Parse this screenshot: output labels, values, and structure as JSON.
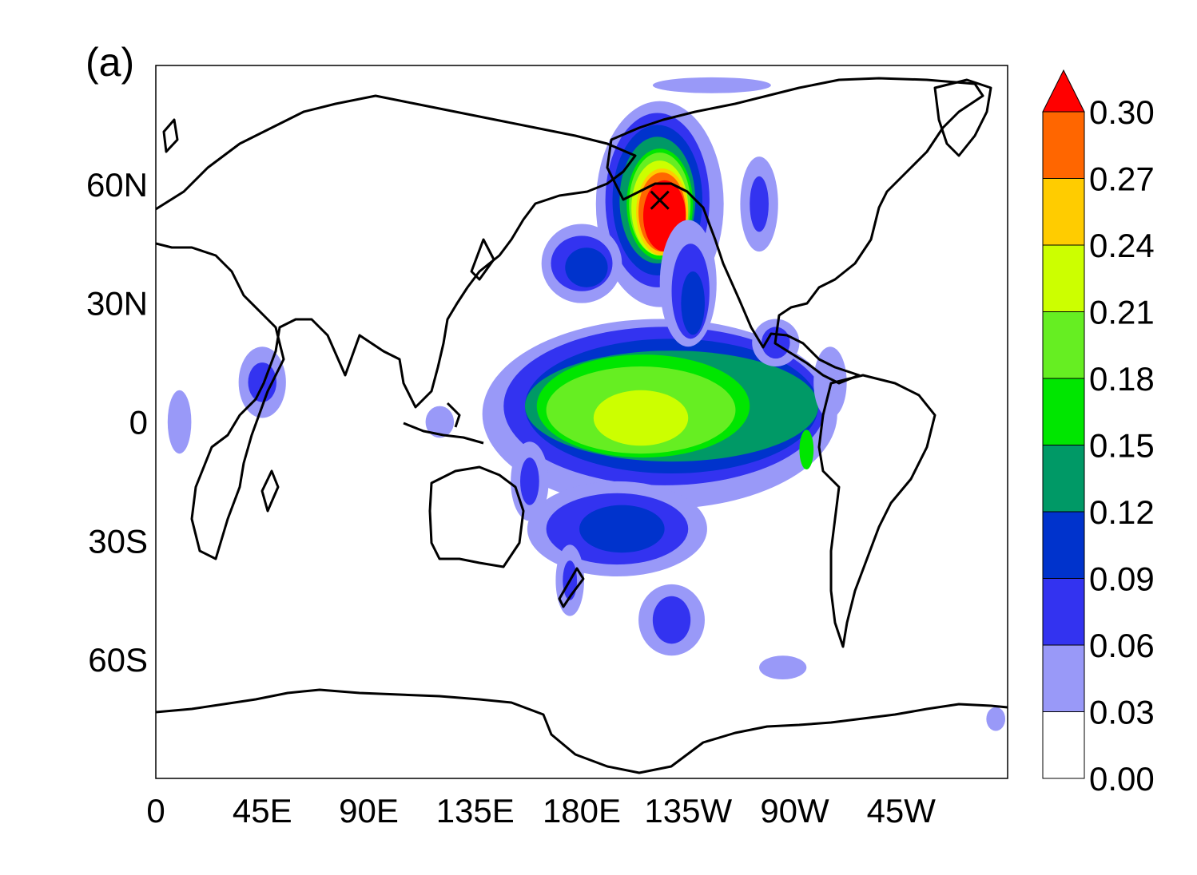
{
  "panel_label": "(a)",
  "chart_data": {
    "type": "heatmap",
    "projection": "equirectangular",
    "x_ticks": [
      "0",
      "45E",
      "90E",
      "135E",
      "180E",
      "135W",
      "90W",
      "45W"
    ],
    "x_tick_lons": [
      0,
      45,
      90,
      135,
      180,
      225,
      270,
      315
    ],
    "y_ticks": [
      "60N",
      "30N",
      "0",
      "30S",
      "60S"
    ],
    "y_tick_lats": [
      60,
      30,
      0,
      -30,
      -60
    ],
    "xlim": [
      0,
      360
    ],
    "ylim": [
      -90,
      90
    ],
    "marker": {
      "symbol": "x",
      "lon": 213,
      "lat": 56
    },
    "colorbar": {
      "levels": [
        "0.00",
        "0.03",
        "0.06",
        "0.09",
        "0.12",
        "0.15",
        "0.18",
        "0.21",
        "0.24",
        "0.27",
        "0.30"
      ],
      "colors": [
        "#ffffff",
        "#9999f8",
        "#3333f0",
        "#0033cc",
        "#009966",
        "#00e600",
        "#66ee22",
        "#ccff00",
        "#ffcc00",
        "#ff6600"
      ],
      "overflow_color": "#ff0000"
    },
    "regions": [
      {
        "level": 0.03,
        "lon": 213,
        "lat": 55,
        "rx": 27,
        "ry": 26
      },
      {
        "level": 0.06,
        "lon": 212,
        "lat": 56,
        "rx": 22,
        "ry": 22
      },
      {
        "level": 0.09,
        "lon": 212,
        "lat": 56,
        "rx": 19,
        "ry": 19
      },
      {
        "level": 0.12,
        "lon": 212,
        "lat": 56,
        "rx": 16,
        "ry": 16
      },
      {
        "level": 0.15,
        "lon": 213,
        "lat": 55,
        "rx": 14,
        "ry": 14
      },
      {
        "level": 0.18,
        "lon": 213,
        "lat": 55,
        "rx": 13,
        "ry": 13
      },
      {
        "level": 0.21,
        "lon": 213,
        "lat": 54,
        "rx": 12,
        "ry": 12
      },
      {
        "level": 0.24,
        "lon": 214,
        "lat": 53,
        "rx": 11,
        "ry": 11
      },
      {
        "level": 0.27,
        "lon": 214,
        "lat": 53,
        "rx": 10,
        "ry": 10
      },
      {
        "level": 0.3,
        "lon": 215,
        "lat": 52,
        "rx": 9,
        "ry": 9
      },
      {
        "level": 0.03,
        "lon": 213,
        "lat": 2,
        "rx": 75,
        "ry": 24
      },
      {
        "level": 0.06,
        "lon": 215,
        "lat": 4,
        "rx": 68,
        "ry": 20
      },
      {
        "level": 0.09,
        "lon": 218,
        "lat": 4,
        "rx": 62,
        "ry": 17
      },
      {
        "level": 0.12,
        "lon": 218,
        "lat": 4,
        "rx": 62,
        "ry": 14
      },
      {
        "level": 0.15,
        "lon": 206,
        "lat": 4,
        "rx": 45,
        "ry": 13
      },
      {
        "level": 0.18,
        "lon": 205,
        "lat": 3,
        "rx": 40,
        "ry": 11
      },
      {
        "level": 0.21,
        "lon": 205,
        "lat": 1,
        "rx": 20,
        "ry": 7
      },
      {
        "level": 0.15,
        "lon": 275,
        "lat": -7,
        "rx": 3,
        "ry": 5
      },
      {
        "level": 0.03,
        "lon": 180,
        "lat": 40,
        "rx": 17,
        "ry": 10
      },
      {
        "level": 0.06,
        "lon": 180,
        "lat": 40,
        "rx": 13,
        "ry": 7
      },
      {
        "level": 0.09,
        "lon": 182,
        "lat": 39,
        "rx": 9,
        "ry": 5
      },
      {
        "level": 0.03,
        "lon": 225,
        "lat": 35,
        "rx": 12,
        "ry": 16
      },
      {
        "level": 0.06,
        "lon": 226,
        "lat": 33,
        "rx": 8,
        "ry": 12
      },
      {
        "level": 0.09,
        "lon": 227,
        "lat": 30,
        "rx": 5,
        "ry": 8
      },
      {
        "level": 0.03,
        "lon": 195,
        "lat": -27,
        "rx": 38,
        "ry": 12
      },
      {
        "level": 0.06,
        "lon": 195,
        "lat": -27,
        "rx": 30,
        "ry": 9
      },
      {
        "level": 0.09,
        "lon": 197,
        "lat": -27,
        "rx": 18,
        "ry": 6
      },
      {
        "level": 0.03,
        "lon": 175,
        "lat": -40,
        "rx": 6,
        "ry": 9
      },
      {
        "level": 0.06,
        "lon": 175,
        "lat": -40,
        "rx": 3,
        "ry": 5
      },
      {
        "level": 0.03,
        "lon": 158,
        "lat": -15,
        "rx": 8,
        "ry": 10
      },
      {
        "level": 0.06,
        "lon": 158,
        "lat": -15,
        "rx": 4,
        "ry": 6
      },
      {
        "level": 0.03,
        "lon": 218,
        "lat": -50,
        "rx": 14,
        "ry": 9
      },
      {
        "level": 0.06,
        "lon": 218,
        "lat": -50,
        "rx": 8,
        "ry": 6
      },
      {
        "level": 0.03,
        "lon": 262,
        "lat": 20,
        "rx": 10,
        "ry": 6
      },
      {
        "level": 0.06,
        "lon": 262,
        "lat": 20,
        "rx": 6,
        "ry": 4
      },
      {
        "level": 0.03,
        "lon": 285,
        "lat": 10,
        "rx": 7,
        "ry": 9
      },
      {
        "level": 0.03,
        "lon": 255,
        "lat": 55,
        "rx": 8,
        "ry": 12
      },
      {
        "level": 0.06,
        "lon": 255,
        "lat": 55,
        "rx": 4,
        "ry": 7
      },
      {
        "level": 0.03,
        "lon": 45,
        "lat": 10,
        "rx": 10,
        "ry": 9
      },
      {
        "level": 0.06,
        "lon": 45,
        "lat": 10,
        "rx": 6,
        "ry": 5
      },
      {
        "level": 0.03,
        "lon": 10,
        "lat": 0,
        "rx": 5,
        "ry": 8
      },
      {
        "level": 0.03,
        "lon": 235,
        "lat": 85,
        "rx": 25,
        "ry": 2
      },
      {
        "level": 0.03,
        "lon": 265,
        "lat": -62,
        "rx": 10,
        "ry": 3
      },
      {
        "level": 0.03,
        "lon": 120,
        "lat": 0,
        "rx": 6,
        "ry": 4
      },
      {
        "level": 0.03,
        "lon": 355,
        "lat": -75,
        "rx": 4,
        "ry": 3
      }
    ]
  }
}
